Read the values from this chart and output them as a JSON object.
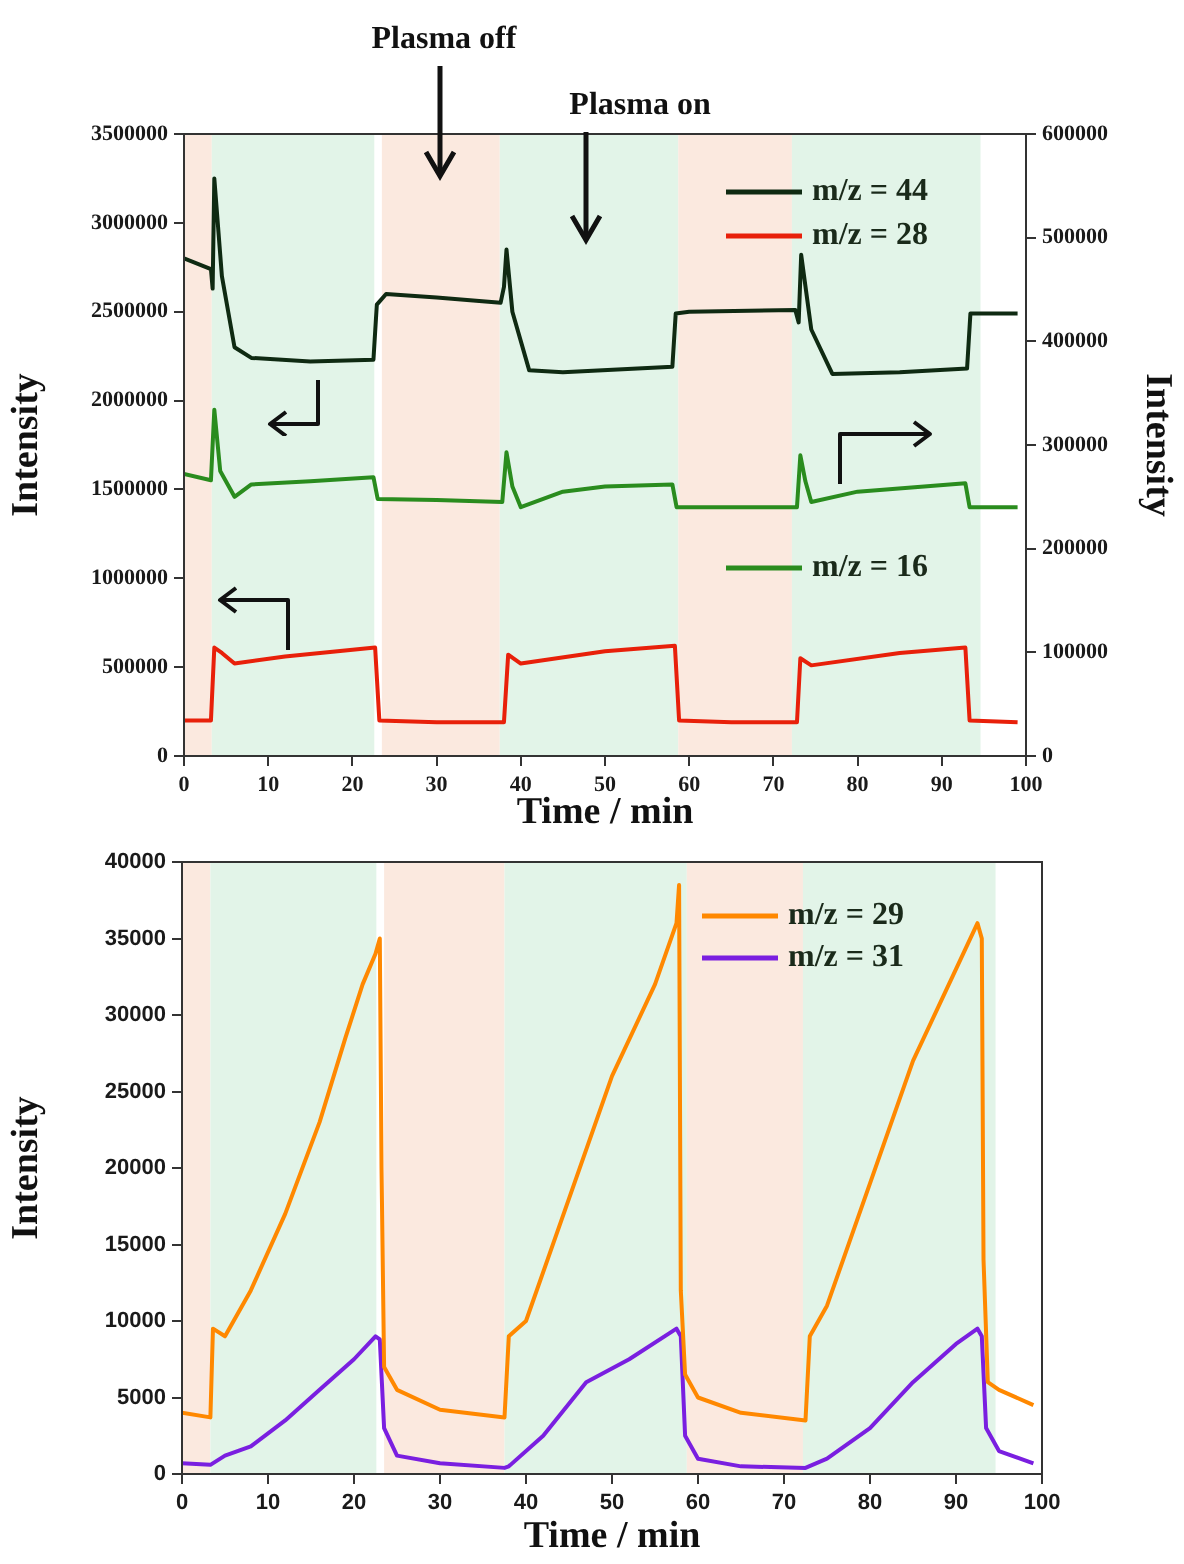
{
  "chart_data": [
    {
      "type": "line",
      "xlabel": "Time / min",
      "ylabel": "Intensity",
      "y2label": "Intensity",
      "xlim": [
        0,
        100
      ],
      "xticks": [
        0,
        10,
        20,
        30,
        40,
        50,
        60,
        70,
        80,
        90,
        100
      ],
      "ylim": [
        0,
        3500000
      ],
      "yticks": [
        0,
        500000,
        1000000,
        1500000,
        2000000,
        2500000,
        3000000,
        3500000
      ],
      "y2lim": [
        0,
        600000
      ],
      "y2ticks": [
        0,
        100000,
        200000,
        300000,
        400000,
        500000,
        600000
      ],
      "grid": false,
      "legend": "top right",
      "marker": "none",
      "bands": [
        {
          "axis": "x",
          "from": 0,
          "to": 3.3,
          "color": "#fbe9df"
        },
        {
          "axis": "x",
          "from": 3.3,
          "to": 22.6,
          "color": "#e2f4e8"
        },
        {
          "axis": "x",
          "from": 23.5,
          "to": 37.5,
          "color": "#fbe9df"
        },
        {
          "axis": "x",
          "from": 37.5,
          "to": 58.7,
          "color": "#e2f4e8"
        },
        {
          "axis": "x",
          "from": 58.7,
          "to": 72.2,
          "color": "#fbe9df"
        },
        {
          "axis": "x",
          "from": 72.2,
          "to": 94.6,
          "color": "#e2f4e8"
        }
      ],
      "annotations": [
        "Plasma off",
        "Plasma on"
      ],
      "series": [
        {
          "name": "m/z = 44",
          "color": "#0f2a12",
          "axis": "y",
          "x": [
            0,
            3.2,
            3.4,
            3.6,
            4.5,
            6,
            8,
            15,
            22.5,
            22.9,
            24,
            30,
            37.6,
            38,
            38.3,
            39,
            41,
            45,
            58,
            58.4,
            60,
            72.6,
            73,
            73.3,
            74.5,
            77,
            85,
            93,
            93.4,
            99
          ],
          "values": [
            2800000,
            2740000,
            2630000,
            3250000,
            2700000,
            2300000,
            2240000,
            2220000,
            2230000,
            2540000,
            2600000,
            2580000,
            2550000,
            2640000,
            2850000,
            2500000,
            2170000,
            2160000,
            2190000,
            2490000,
            2500000,
            2510000,
            2440000,
            2820000,
            2400000,
            2150000,
            2160000,
            2180000,
            2490000,
            2490000
          ]
        },
        {
          "name": "m/z = 28",
          "color": "#e8200a",
          "axis": "y",
          "x": [
            0,
            3.2,
            3.6,
            4.5,
            6,
            12,
            22.7,
            23.2,
            30,
            38,
            38.5,
            40,
            50,
            58.3,
            58.8,
            65,
            72.8,
            73.2,
            74.5,
            85,
            92.8,
            93.3,
            99
          ],
          "values": [
            200000,
            200000,
            610000,
            580000,
            520000,
            560000,
            610000,
            200000,
            190000,
            190000,
            570000,
            520000,
            590000,
            620000,
            200000,
            190000,
            190000,
            550000,
            510000,
            580000,
            610000,
            200000,
            190000
          ]
        },
        {
          "name": "m/z = 16",
          "color": "#2a8c1e",
          "axis": "y2",
          "x": [
            0,
            3.2,
            3.6,
            4.3,
            6,
            8,
            15,
            22.5,
            23,
            30,
            37.8,
            38.3,
            39,
            40,
            45,
            50,
            58,
            58.5,
            65,
            72.8,
            73.2,
            73.8,
            74.5,
            80,
            92.8,
            93.3,
            99
          ],
          "values": [
            272000,
            266000,
            334000,
            275000,
            250000,
            262000,
            265000,
            269000,
            248000,
            247000,
            245000,
            293000,
            260000,
            240000,
            255000,
            260000,
            262000,
            240000,
            240000,
            240000,
            290000,
            265000,
            245000,
            255000,
            263000,
            240000,
            240000
          ]
        }
      ]
    },
    {
      "type": "line",
      "xlabel": "Time / min",
      "ylabel": "Intensity",
      "xlim": [
        0,
        100
      ],
      "xticks": [
        0,
        10,
        20,
        30,
        40,
        50,
        60,
        70,
        80,
        90,
        100
      ],
      "ylim": [
        0,
        40000
      ],
      "yticks": [
        0,
        5000,
        10000,
        15000,
        20000,
        25000,
        30000,
        35000,
        40000
      ],
      "grid": false,
      "legend": "top right",
      "marker": "none",
      "bands": [
        {
          "axis": "x",
          "from": 0,
          "to": 3.3,
          "color": "#fbe9df"
        },
        {
          "axis": "x",
          "from": 3.3,
          "to": 22.6,
          "color": "#e2f4e8"
        },
        {
          "axis": "x",
          "from": 23.5,
          "to": 37.5,
          "color": "#fbe9df"
        },
        {
          "axis": "x",
          "from": 37.5,
          "to": 58.7,
          "color": "#e2f4e8"
        },
        {
          "axis": "x",
          "from": 58.7,
          "to": 72.2,
          "color": "#fbe9df"
        },
        {
          "axis": "x",
          "from": 72.2,
          "to": 94.6,
          "color": "#e2f4e8"
        }
      ],
      "series": [
        {
          "name": "m/z = 29",
          "color": "#ff8800",
          "x": [
            0,
            3.3,
            3.6,
            5,
            8,
            12,
            16,
            19,
            21,
            22.5,
            23,
            23.2,
            23.5,
            25,
            30,
            37.5,
            38,
            40,
            45,
            50,
            55,
            57.5,
            57.8,
            58,
            58.5,
            60,
            65,
            72.5,
            73,
            75,
            80,
            85,
            90,
            92.5,
            93,
            93.2,
            93.7,
            95,
            99
          ],
          "values": [
            4000,
            3700,
            9500,
            9000,
            12000,
            17000,
            23000,
            28500,
            32000,
            34000,
            35000,
            20000,
            7000,
            5500,
            4200,
            3700,
            9000,
            10000,
            18000,
            26000,
            32000,
            36000,
            38500,
            12000,
            6500,
            5000,
            4000,
            3500,
            9000,
            11000,
            19000,
            27000,
            33000,
            36000,
            35000,
            14000,
            6000,
            5500,
            4500
          ]
        },
        {
          "name": "m/z = 31",
          "color": "#7a1fe0",
          "x": [
            0,
            3.3,
            5,
            8,
            12,
            16,
            20,
            22.5,
            23,
            23.5,
            25,
            30,
            37.5,
            38,
            42,
            47,
            52,
            57.5,
            58,
            58.5,
            60,
            65,
            72.5,
            75,
            80,
            85,
            90,
            92.5,
            93,
            93.5,
            95,
            99
          ],
          "values": [
            700,
            600,
            1200,
            1800,
            3500,
            5500,
            7500,
            9000,
            8800,
            3000,
            1200,
            700,
            400,
            500,
            2500,
            6000,
            7500,
            9500,
            9000,
            2500,
            1000,
            500,
            400,
            1000,
            3000,
            6000,
            8500,
            9500,
            9000,
            3000,
            1500,
            700
          ]
        }
      ]
    }
  ]
}
